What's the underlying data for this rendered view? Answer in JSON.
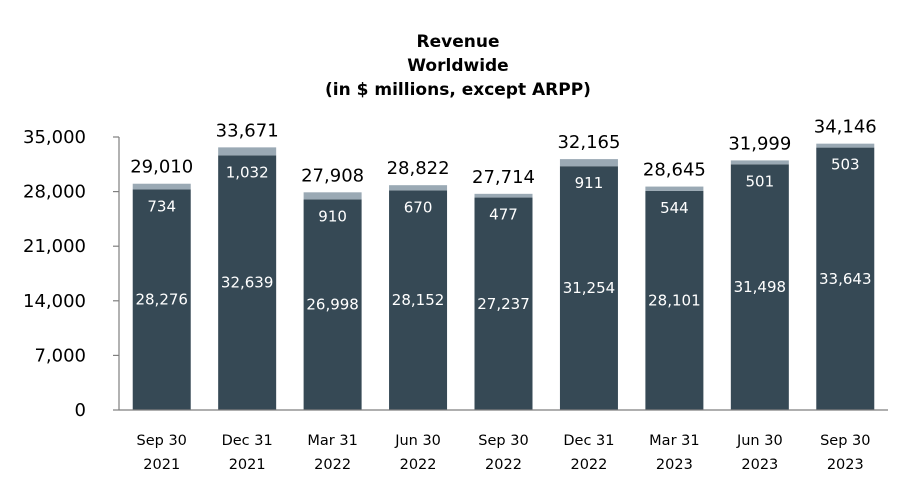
{
  "chart_data": {
    "type": "bar",
    "stacked": true,
    "title": [
      "Revenue",
      "Worldwide",
      "(in $ millions, except ARPP)"
    ],
    "categories": [
      [
        "Sep 30",
        "2021"
      ],
      [
        "Dec 31",
        "2021"
      ],
      [
        "Mar 31",
        "2022"
      ],
      [
        "Jun 30",
        "2022"
      ],
      [
        "Sep 30",
        "2022"
      ],
      [
        "Dec 31",
        "2022"
      ],
      [
        "Mar 31",
        "2023"
      ],
      [
        "Jun 30",
        "2023"
      ],
      [
        "Sep 30",
        "2023"
      ]
    ],
    "series": [
      {
        "name": "Bottom segment",
        "color": "#364955",
        "values": [
          28276,
          32639,
          26998,
          28152,
          27237,
          31254,
          28101,
          31498,
          33643
        ],
        "labels": [
          "28,276",
          "32,639",
          "26,998",
          "28,152",
          "27,237",
          "31,254",
          "28,101",
          "31,498",
          "33,643"
        ]
      },
      {
        "name": "Top segment",
        "color": "#9aa9b4",
        "values": [
          734,
          1032,
          910,
          670,
          477,
          911,
          544,
          501,
          503
        ],
        "labels": [
          "734",
          "1,032",
          "910",
          "670",
          "477",
          "911",
          "544",
          "501",
          "503"
        ]
      }
    ],
    "totals": [
      "29,010",
      "33,671",
      "27,908",
      "28,822",
      "27,714",
      "32,165",
      "28,645",
      "31,999",
      "34,146"
    ],
    "total_values": [
      29010,
      33671,
      27908,
      28822,
      27714,
      32165,
      28645,
      31999,
      34146
    ],
    "yticks": [
      0,
      7000,
      14000,
      21000,
      28000,
      35000
    ],
    "ytick_labels": [
      "0",
      "7,000",
      "14,000",
      "21,000",
      "28,000",
      "35,000"
    ],
    "ylim": [
      0,
      35000
    ],
    "xlabel": "",
    "ylabel": ""
  }
}
